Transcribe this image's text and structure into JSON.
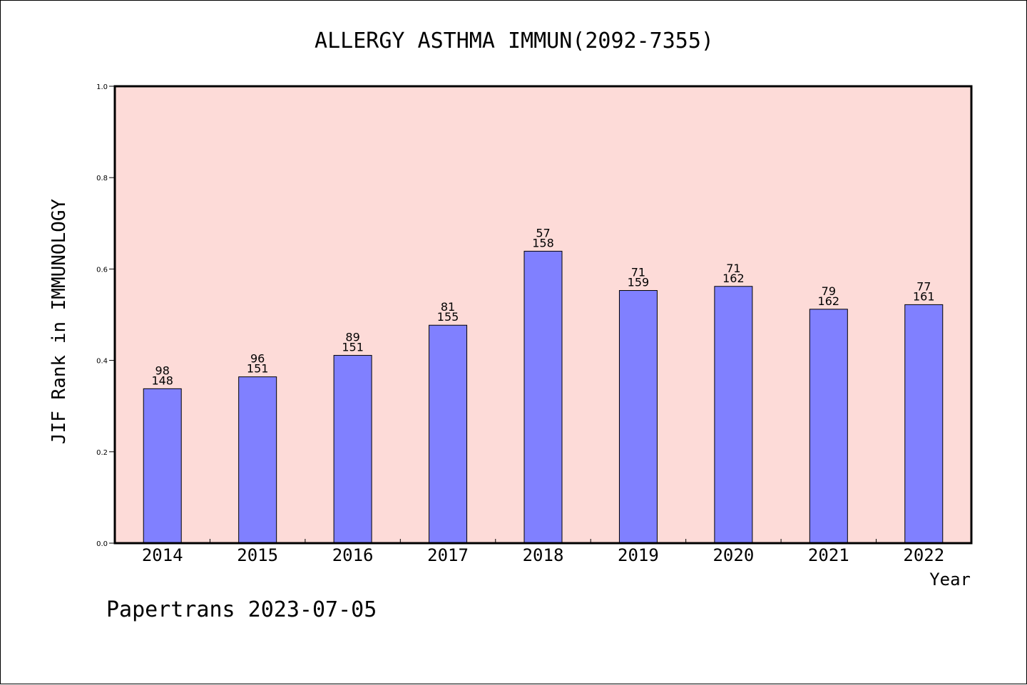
{
  "chart_data": {
    "type": "bar",
    "title": "ALLERGY ASTHMA IMMUN(2092-7355)",
    "xlabel": "Year",
    "ylabel": "JIF Rank in IMMUNOLOGY",
    "ylim": [
      0,
      1.0
    ],
    "yticks": [
      "0.0",
      "0.2",
      "0.4",
      "0.6",
      "0.8",
      "1.0"
    ],
    "grid": false,
    "categories": [
      "2014",
      "2015",
      "2016",
      "2017",
      "2018",
      "2019",
      "2020",
      "2021",
      "2022"
    ],
    "values": [
      0.338,
      0.364,
      0.411,
      0.477,
      0.639,
      0.553,
      0.562,
      0.512,
      0.522
    ],
    "rank": [
      "98",
      "96",
      "89",
      "81",
      "57",
      "71",
      "71",
      "79",
      "77"
    ],
    "total": [
      "148",
      "151",
      "151",
      "155",
      "158",
      "159",
      "162",
      "162",
      "161"
    ],
    "colors": {
      "bar": "#8080ff",
      "plot_background": "#fddbd8",
      "axis": "#000000"
    }
  },
  "footer": {
    "text": "Papertrans 2023-07-05"
  }
}
